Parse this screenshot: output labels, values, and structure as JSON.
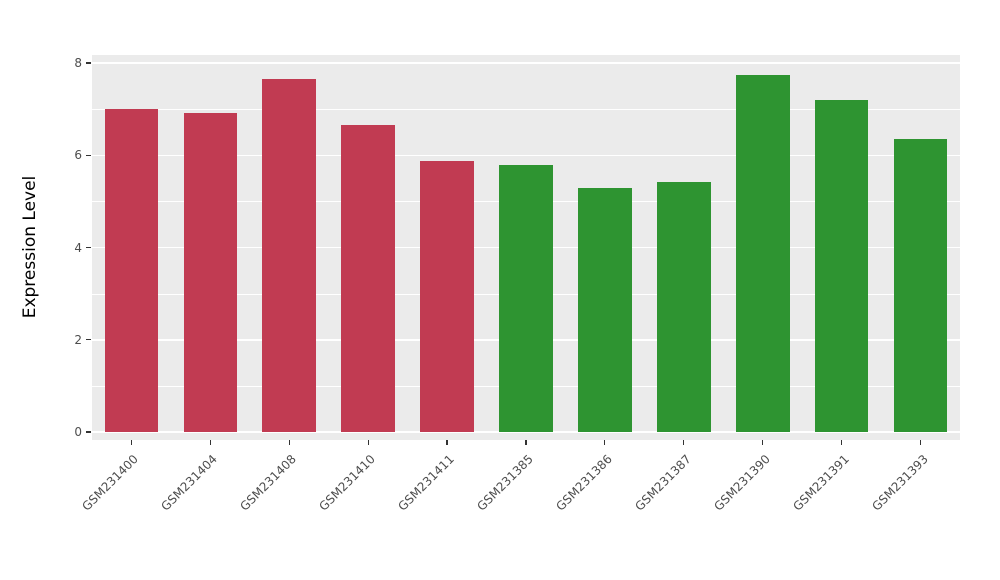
{
  "chart_data": {
    "type": "bar",
    "title": "",
    "xlabel": "",
    "ylabel": "Expression Level",
    "ylim": [
      0,
      8
    ],
    "yticks": [
      0,
      2,
      4,
      6,
      8
    ],
    "minor_ticks": [
      1,
      3,
      5,
      7
    ],
    "grid": "on",
    "legend_position": "none",
    "categories": [
      "GSM231400",
      "GSM231404",
      "GSM231408",
      "GSM231410",
      "GSM231411",
      "GSM231385",
      "GSM231386",
      "GSM231387",
      "GSM231390",
      "GSM231391",
      "GSM231393"
    ],
    "values": [
      7.0,
      6.92,
      7.65,
      6.65,
      5.87,
      5.78,
      5.28,
      5.43,
      7.75,
      7.2,
      6.35
    ],
    "bar_colors": [
      "#C13B52",
      "#C13B52",
      "#C13B52",
      "#C13B52",
      "#C13B52",
      "#2E9431",
      "#2E9431",
      "#2E9431",
      "#2E9431",
      "#2E9431",
      "#2E9431"
    ],
    "group_colors": {
      "red_group": "#C13B52",
      "green_group": "#2E9431"
    },
    "panel_background": "#EBEBEB",
    "grid_color": "#FFFFFF",
    "axis_text_color": "#4D4D4D"
  }
}
